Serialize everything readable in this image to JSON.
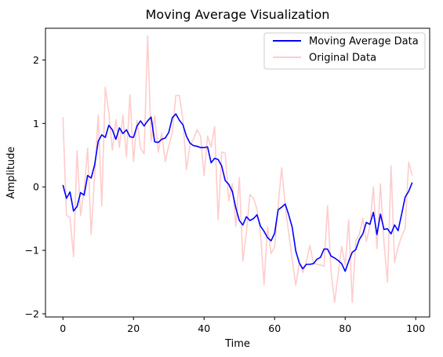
{
  "chart_data": {
    "type": "line",
    "title": "Moving Average Visualization",
    "xlabel": "Time",
    "ylabel": "Amplitude",
    "xlim": [
      -4.95,
      103.95
    ],
    "ylim": [
      -2.05,
      2.5
    ],
    "xticks": [
      0,
      20,
      40,
      60,
      80,
      100
    ],
    "yticks": [
      -2,
      -1,
      0,
      1,
      2
    ],
    "legend": "top-right",
    "grid": false,
    "series": [
      {
        "name": "Moving Average Data",
        "color": "#0000ff",
        "x": [
          0,
          1,
          2,
          3,
          4,
          5,
          6,
          7,
          8,
          9,
          10,
          11,
          12,
          13,
          14,
          15,
          16,
          17,
          18,
          19,
          20,
          21,
          22,
          23,
          24,
          25,
          26,
          27,
          28,
          29,
          30,
          31,
          32,
          33,
          34,
          35,
          36,
          37,
          38,
          39,
          40,
          41,
          42,
          43,
          44,
          45,
          46,
          47,
          48,
          49,
          50,
          51,
          52,
          53,
          54,
          55,
          56,
          57,
          58,
          59,
          60,
          61,
          62,
          63,
          64,
          65,
          66,
          67,
          68,
          69,
          70,
          71,
          72,
          73,
          74,
          75,
          76,
          77,
          78,
          79,
          80,
          81,
          82,
          83,
          84,
          85,
          86,
          87,
          88,
          89,
          90,
          91,
          92,
          93,
          94,
          95,
          96,
          97,
          98,
          99
        ],
        "y": [
          0.03,
          -0.18,
          -0.08,
          -0.38,
          -0.31,
          -0.09,
          -0.13,
          0.18,
          0.14,
          0.35,
          0.72,
          0.82,
          0.78,
          0.97,
          0.9,
          0.75,
          0.93,
          0.84,
          0.9,
          0.79,
          0.78,
          0.96,
          1.04,
          0.96,
          1.04,
          1.1,
          0.71,
          0.7,
          0.75,
          0.77,
          0.86,
          1.09,
          1.15,
          1.05,
          0.98,
          0.8,
          0.69,
          0.65,
          0.64,
          0.62,
          0.62,
          0.63,
          0.38,
          0.45,
          0.43,
          0.33,
          0.1,
          0.04,
          -0.07,
          -0.33,
          -0.53,
          -0.6,
          -0.47,
          -0.53,
          -0.5,
          -0.44,
          -0.62,
          -0.7,
          -0.8,
          -0.85,
          -0.73,
          -0.36,
          -0.32,
          -0.27,
          -0.44,
          -0.64,
          -1.01,
          -1.2,
          -1.29,
          -1.22,
          -1.22,
          -1.21,
          -1.14,
          -1.11,
          -0.98,
          -0.98,
          -1.09,
          -1.12,
          -1.16,
          -1.21,
          -1.33,
          -1.17,
          -1.03,
          -0.99,
          -0.83,
          -0.74,
          -0.56,
          -0.59,
          -0.4,
          -0.75,
          -0.43,
          -0.67,
          -0.66,
          -0.74,
          -0.6,
          -0.69,
          -0.43,
          -0.16,
          -0.07,
          0.07
        ]
      },
      {
        "name": "Original Data",
        "color": "#ffcccc",
        "x": [
          0,
          1,
          2,
          3,
          4,
          5,
          6,
          7,
          8,
          9,
          10,
          11,
          12,
          13,
          14,
          15,
          16,
          17,
          18,
          19,
          20,
          21,
          22,
          23,
          24,
          25,
          26,
          27,
          28,
          29,
          30,
          31,
          32,
          33,
          34,
          35,
          36,
          37,
          38,
          39,
          40,
          41,
          42,
          43,
          44,
          45,
          46,
          47,
          48,
          49,
          50,
          51,
          52,
          53,
          54,
          55,
          56,
          57,
          58,
          59,
          60,
          61,
          62,
          63,
          64,
          65,
          66,
          67,
          68,
          69,
          70,
          71,
          72,
          73,
          74,
          75,
          76,
          77,
          78,
          79,
          80,
          81,
          82,
          83,
          84,
          85,
          86,
          87,
          88,
          89,
          90,
          91,
          92,
          93,
          94,
          95,
          96,
          97,
          98,
          99
        ],
        "y": [
          1.1,
          -0.45,
          -0.48,
          -1.1,
          0.57,
          -0.45,
          -0.05,
          0.61,
          -0.75,
          0.2,
          1.13,
          -0.3,
          1.57,
          1.18,
          0.58,
          1.06,
          0.62,
          1.13,
          0.47,
          1.45,
          0.4,
          1.05,
          0.61,
          0.52,
          2.38,
          0.72,
          1.12,
          0.55,
          0.85,
          0.4,
          0.65,
          0.85,
          1.44,
          1.44,
          1.07,
          0.27,
          0.65,
          0.75,
          0.9,
          0.8,
          0.18,
          0.8,
          0.63,
          0.95,
          -0.52,
          0.55,
          0.53,
          -0.22,
          0.05,
          -0.62,
          0.15,
          -1.17,
          -0.72,
          -0.12,
          -0.18,
          -0.35,
          -0.73,
          -1.54,
          -0.63,
          -1.05,
          -0.95,
          -0.3,
          0.3,
          -0.3,
          -0.73,
          -1.15,
          -1.55,
          -1.2,
          -1.35,
          -1.18,
          -0.92,
          -1.2,
          -1.22,
          -1.23,
          -1.25,
          -0.3,
          -1.34,
          -1.82,
          -1.38,
          -0.94,
          -1.23,
          -0.52,
          -1.82,
          -0.85,
          -0.75,
          -0.5,
          -0.86,
          -0.62,
          0.0,
          -0.97,
          0.05,
          -0.88,
          -1.5,
          0.33,
          -1.19,
          -0.95,
          -0.78,
          -0.65,
          0.39,
          0.18
        ]
      }
    ]
  }
}
